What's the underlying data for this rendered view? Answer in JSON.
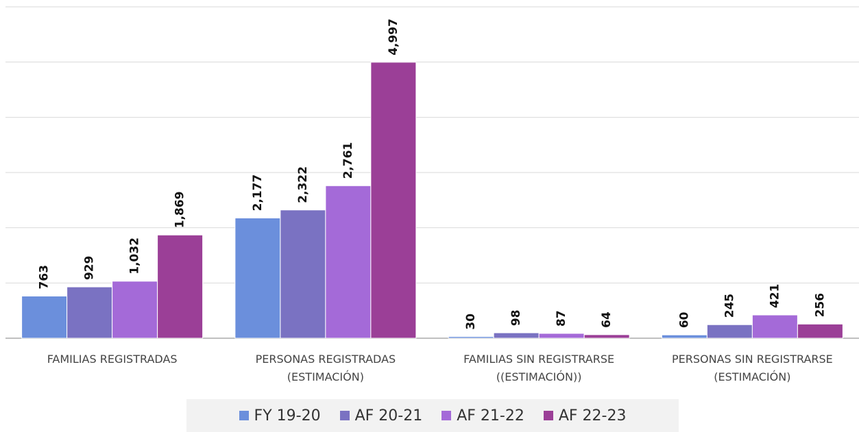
{
  "chart_data": {
    "type": "bar",
    "categories": [
      "FAMILIAS REGISTRADAS",
      "PERSONAS REGISTRADAS\n(ESTIMACIÓN)",
      "FAMILIAS SIN REGISTRARSE\n((ESTIMACIÓN))",
      "PERSONAS SIN REGISTRARSE\n(ESTIMACIÓN)"
    ],
    "series": [
      {
        "name": "FY 19-20",
        "color": "#6b8fdc",
        "values": [
          763,
          2177,
          30,
          60
        ],
        "value_labels": [
          "763",
          "2,177",
          "30",
          "60"
        ]
      },
      {
        "name": "AF 20-21",
        "color": "#7a72c2",
        "values": [
          929,
          2322,
          98,
          245
        ],
        "value_labels": [
          "929",
          "2,322",
          "98",
          "245"
        ]
      },
      {
        "name": "AF 21-22",
        "color": "#a46ad8",
        "values": [
          1032,
          2761,
          87,
          421
        ],
        "value_labels": [
          "1,032",
          "2,761",
          "87",
          "421"
        ]
      },
      {
        "name": "AF 22-23",
        "color": "#9b3f97",
        "values": [
          1869,
          4997,
          64,
          256
        ],
        "value_labels": [
          "1,869",
          "4,997",
          "64",
          "256"
        ]
      }
    ],
    "ylim": [
      0,
      6000
    ],
    "yticks": [
      0,
      1000,
      2000,
      3000,
      4000,
      5000,
      6000
    ],
    "grid": true
  }
}
